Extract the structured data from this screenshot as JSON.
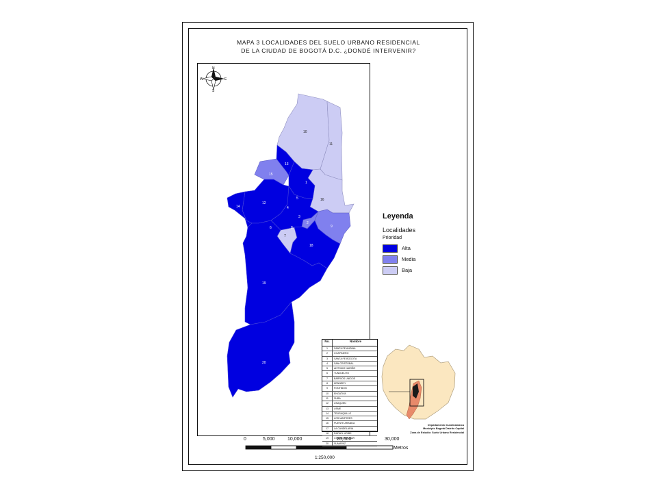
{
  "map": {
    "title_line1": "MAPA 3 LOCALIDADES DEL SUELO URBANO RESIDENCIAL",
    "title_line2": "DE LA CIUDAD DE BOGOTÁ D.C. ¿DONDÉ INTERVENIR?",
    "north_arrow": {
      "n": "N",
      "s": "S",
      "e": "E",
      "w": "W"
    },
    "localidad_labels": [
      "10",
      "11",
      "13",
      "15",
      "1",
      "16",
      "14",
      "12",
      "5",
      "4",
      "3",
      "2",
      "6",
      "7",
      "8",
      "9",
      "18",
      "19",
      "20"
    ]
  },
  "legend": {
    "title": "Leyenda",
    "subtitle": "Localidades",
    "category": "Prioridad",
    "items": [
      {
        "label": "Alta",
        "color": "#0000e0"
      },
      {
        "label": "Media",
        "color": "#8080ee"
      },
      {
        "label": "Baja",
        "color": "#ccccf4"
      }
    ]
  },
  "table": {
    "headers": [
      "No.",
      "Nombre"
    ],
    "rows": [
      [
        "1",
        "SANTA FE ANDINA"
      ],
      [
        "2",
        "CHAPINERO"
      ],
      [
        "3",
        "SANTA FE BOGOTA"
      ],
      [
        "4",
        "SAN CRISTOBAL"
      ],
      [
        "5",
        "ANTONIO NARIÑO"
      ],
      [
        "6",
        "TUNJUELITO"
      ],
      [
        "7",
        "BARRIOS UNIDOS"
      ],
      [
        "8",
        "KENNEDY"
      ],
      [
        "9",
        "FONTIBON"
      ],
      [
        "10",
        "ENGATIVA"
      ],
      [
        "11",
        "SUBA"
      ],
      [
        "12",
        "USAQUEN"
      ],
      [
        "13",
        "USME"
      ],
      [
        "14",
        "TEUSAQUILLO"
      ],
      [
        "15",
        "LOS MARTIRES"
      ],
      [
        "16",
        "PUENTE ARANDA"
      ],
      [
        "17",
        "LA CANDELARIA"
      ],
      [
        "18",
        "RAFAEL URIBE"
      ],
      [
        "19",
        "CIUDAD BOLIVAR"
      ],
      [
        "20",
        "SUMAPAZ"
      ]
    ]
  },
  "inset": {
    "line1": "Departamento Cundinamarca",
    "line2": "Municipio Bogotá Distrito Capital",
    "line3": "Zona de Estudio: Suelo Urbano Residencial"
  },
  "scale": {
    "ticks": [
      "0",
      "5,000",
      "10,000",
      "20,000",
      "30,000"
    ],
    "unit": "Metros",
    "ratio": "1:250,000"
  },
  "colors": {
    "alta": "#0000e0",
    "media": "#8080ee",
    "baja": "#ccccf4",
    "inset_land": "#fbe7c0"
  }
}
